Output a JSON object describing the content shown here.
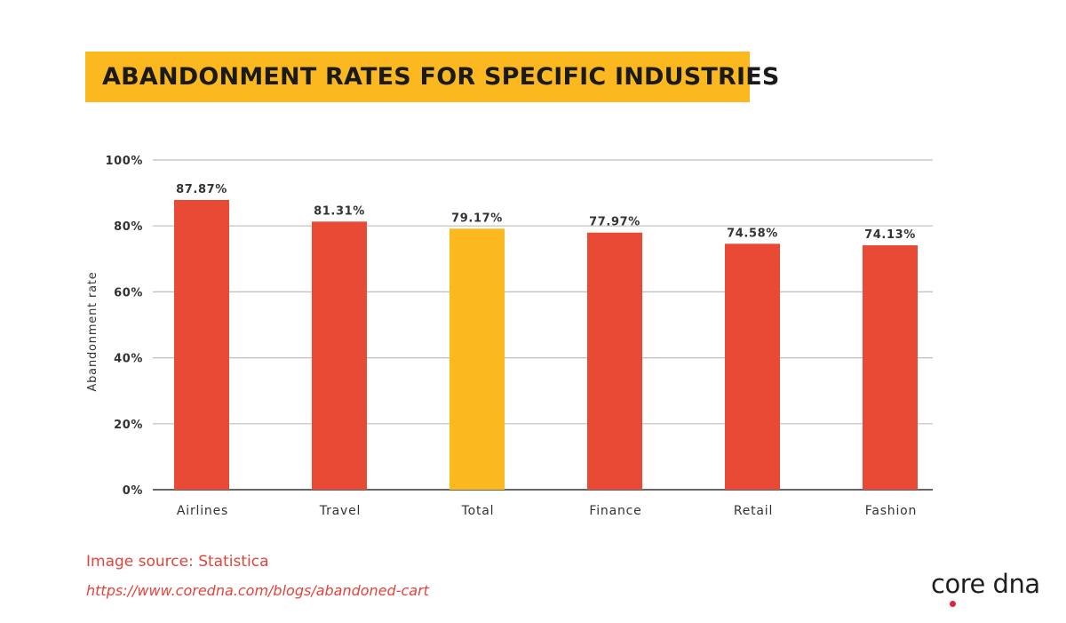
{
  "header": {
    "title": "ABANDONMENT RATES FOR SPECIFIC INDUSTRIES"
  },
  "footer": {
    "source": "Image source: Statistica",
    "url": "https://www.coredna.com/blogs/abandoned-cart",
    "logo_text": "coredna"
  },
  "colors": {
    "banner": "#fbb81f",
    "bar": "#e84a35",
    "bar_highlight": "#fbb81f",
    "text_accent": "#e2443a",
    "logo_dot": "#e2253b"
  },
  "chart_data": {
    "type": "bar",
    "title": "ABANDONMENT RATES FOR SPECIFIC INDUSTRIES",
    "xlabel": "",
    "ylabel": "Abandonment rate",
    "categories": [
      "Airlines",
      "Travel",
      "Total",
      "Finance",
      "Retail",
      "Fashion"
    ],
    "values": [
      87.87,
      81.31,
      79.17,
      77.97,
      74.58,
      74.13
    ],
    "data_labels": [
      "87.87%",
      "81.31%",
      "79.17%",
      "77.97%",
      "74.58%",
      "74.13%"
    ],
    "highlight_category": "Total",
    "ylim": [
      0,
      100
    ],
    "yticks": [
      0,
      20,
      40,
      60,
      80,
      100
    ],
    "ytick_labels": [
      "0%",
      "20%",
      "40%",
      "60%",
      "80%",
      "100%"
    ],
    "grid": true,
    "legend": "none"
  }
}
